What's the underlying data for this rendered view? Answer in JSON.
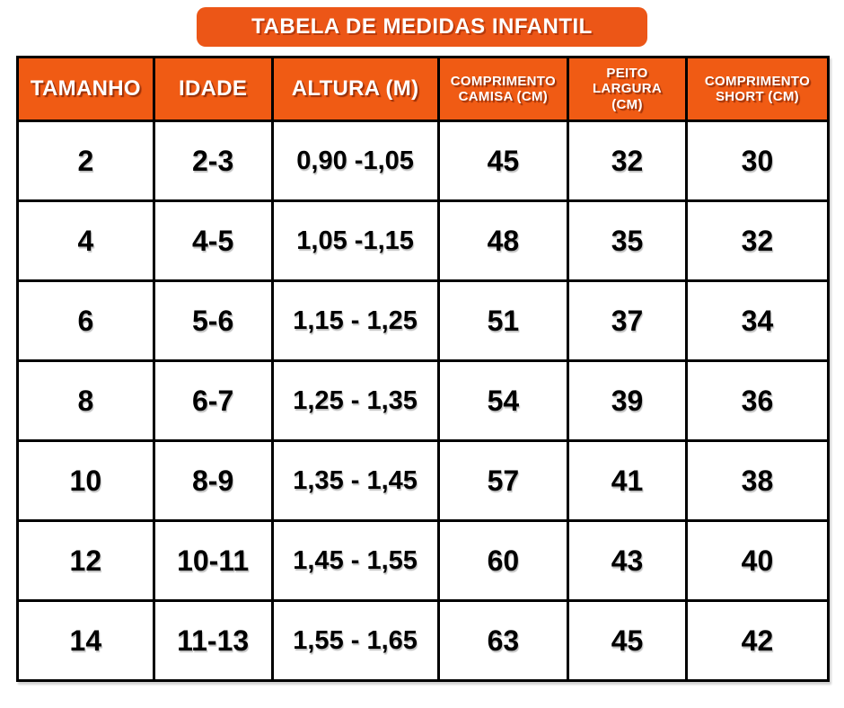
{
  "title": "TABELA DE MEDIDAS INFANTIL",
  "colors": {
    "accent_orange": "#EC5617",
    "header_orange": "#F05B14",
    "border_black": "#000000",
    "header_text": "#FFFFFF",
    "body_text": "#000000",
    "background": "#FFFFFF"
  },
  "header_display": [
    "TAMANHO",
    "IDADE",
    "ALTURA (M)",
    "COMPRIMENTO\nCAMISA (CM)",
    "PEITO\nLARGURA\n(CM)",
    "COMPRIMENTO\nSHORT (CM)"
  ],
  "column_ids": [
    "tamanho",
    "idade",
    "altura-m",
    "comprimento-camisa-cm",
    "peito-largura-cm",
    "comprimento-short-cm"
  ],
  "chart_data": {
    "type": "table",
    "title": "TABELA DE MEDIDAS INFANTIL",
    "columns": [
      "TAMANHO",
      "IDADE",
      "ALTURA (M)",
      "COMPRIMENTO CAMISA (CM)",
      "PEITO LARGURA (CM)",
      "COMPRIMENTO SHORT (CM)"
    ],
    "rows": [
      [
        "2",
        "2-3",
        "0,90 -1,05",
        "45",
        "32",
        "30"
      ],
      [
        "4",
        "4-5",
        "1,05 -1,15",
        "48",
        "35",
        "32"
      ],
      [
        "6",
        "5-6",
        "1,15 - 1,25",
        "51",
        "37",
        "34"
      ],
      [
        "8",
        "6-7",
        "1,25 - 1,35",
        "54",
        "39",
        "36"
      ],
      [
        "10",
        "8-9",
        "1,35 - 1,45",
        "57",
        "41",
        "38"
      ],
      [
        "12",
        "10-11",
        "1,45 - 1,55",
        "60",
        "43",
        "40"
      ],
      [
        "14",
        "11-13",
        "1,55 - 1,65",
        "63",
        "45",
        "42"
      ]
    ]
  }
}
